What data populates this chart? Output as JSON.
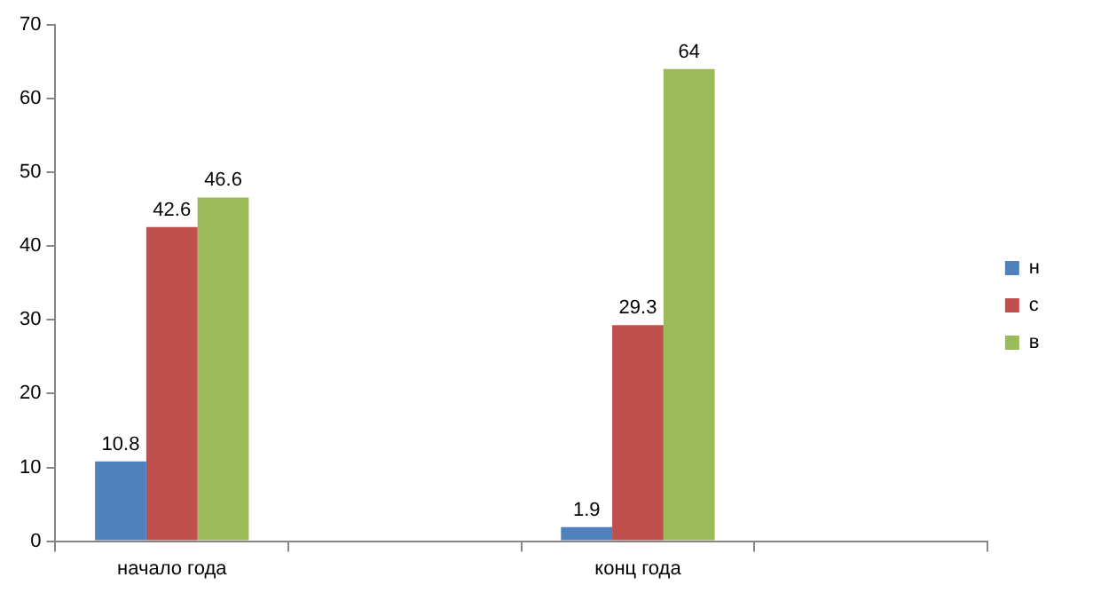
{
  "chart_data": {
    "type": "bar",
    "categories": [
      "начало года",
      null,
      "конц года",
      null
    ],
    "series": [
      {
        "name": "н",
        "color": "#4f81bd",
        "values": [
          10.8,
          null,
          1.9,
          null
        ]
      },
      {
        "name": "с",
        "color": "#c0504d",
        "values": [
          42.6,
          null,
          29.3,
          null
        ]
      },
      {
        "name": "в",
        "color": "#9bbb59",
        "values": [
          46.6,
          null,
          64,
          null
        ]
      }
    ],
    "ylim": [
      0,
      70
    ],
    "yticks": [
      0,
      10,
      20,
      30,
      40,
      50,
      60,
      70
    ],
    "grid": false,
    "legend": "right",
    "data_labels": true
  }
}
